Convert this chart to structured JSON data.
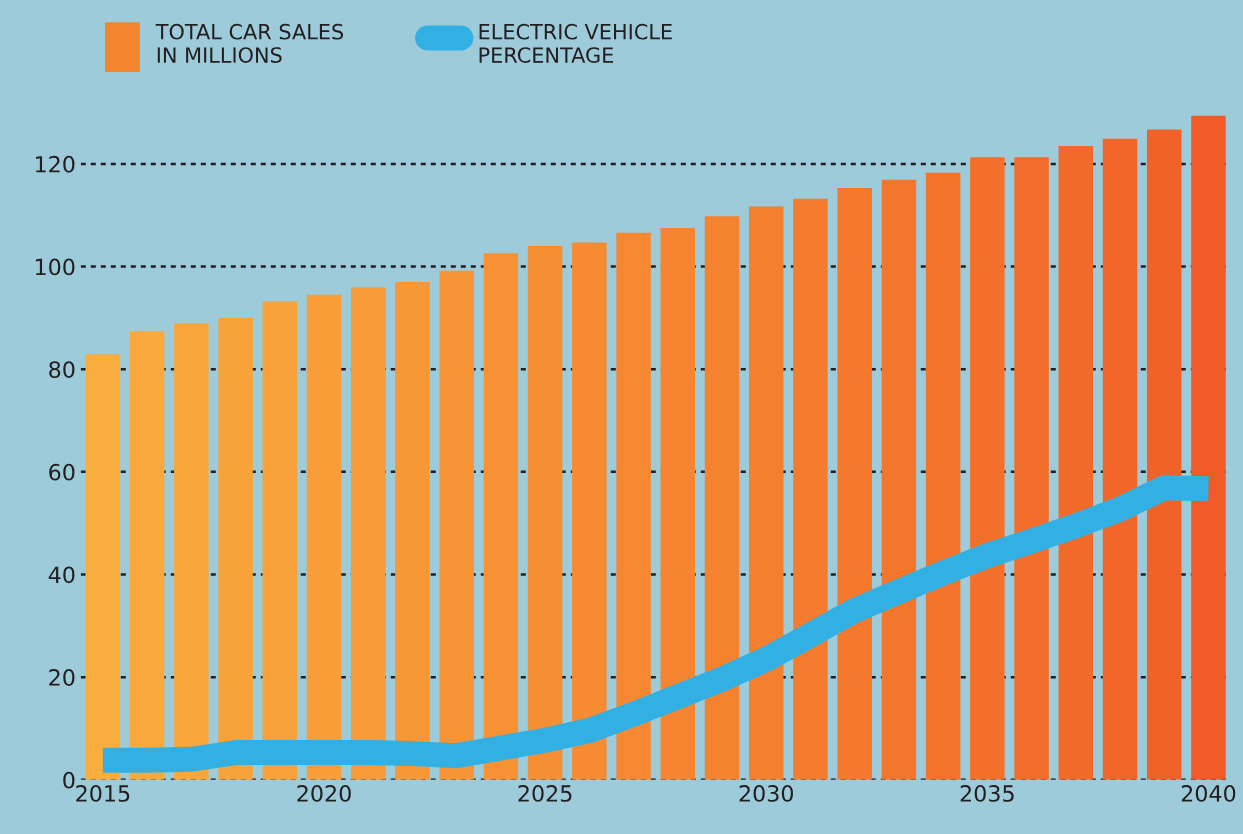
{
  "chart_data": {
    "type": "bar",
    "categories": [
      "2015",
      null,
      null,
      null,
      null,
      "2020",
      null,
      null,
      null,
      null,
      "2025",
      null,
      null,
      null,
      null,
      "2030",
      null,
      null,
      null,
      null,
      "2035",
      null,
      null,
      null,
      null,
      "2040"
    ],
    "series": [
      {
        "name": "TOTAL CAR SALES\nIN MILLIONS",
        "color": "#f4862f",
        "colors": [
          "#f9ad3d",
          "#f9a93c",
          "#f9a63b",
          "#f8a33a",
          "#f8a039",
          "#f89d38",
          "#f79a37",
          "#f79736",
          "#f79435",
          "#f69134",
          "#f68e33",
          "#f68b32",
          "#f58831",
          "#f58530",
          "#f5822f",
          "#f47f2e",
          "#f47c2e",
          "#f4792d",
          "#f3762c",
          "#f3732b",
          "#f3702b",
          "#f26d2a",
          "#f26a2a",
          "#f26629",
          "#f16229",
          "#f05a28"
        ],
        "values": [
          82.9,
          87.4,
          88.9,
          90.0,
          93.2,
          94.5,
          95.9,
          97.0,
          99.2,
          102.6,
          104.0,
          104.7,
          106.6,
          107.5,
          109.8,
          111.7,
          113.2,
          115.3,
          116.9,
          118.3,
          121.3,
          121.3,
          123.5,
          124.9,
          126.7,
          129.4
        ]
      },
      {
        "name": "ELECTRIC VEHICLE\nPERCENTAGE",
        "type": "line",
        "color": "#33b0e3",
        "values": [
          3.8,
          3.8,
          4.0,
          5.3,
          5.3,
          5.3,
          5.3,
          5.1,
          4.7,
          6.2,
          7.7,
          9.6,
          12.8,
          16.2,
          19.6,
          23.5,
          28.2,
          33.0,
          36.7,
          40.3,
          43.7,
          46.5,
          49.5,
          52.7,
          56.9,
          56.7
        ]
      }
    ],
    "ylim": [
      0,
      130
    ],
    "yticks": [
      0,
      20,
      40,
      60,
      80,
      100,
      120
    ],
    "grid": "y",
    "legend": "top left",
    "line_style": "solid",
    "marker": "none"
  }
}
